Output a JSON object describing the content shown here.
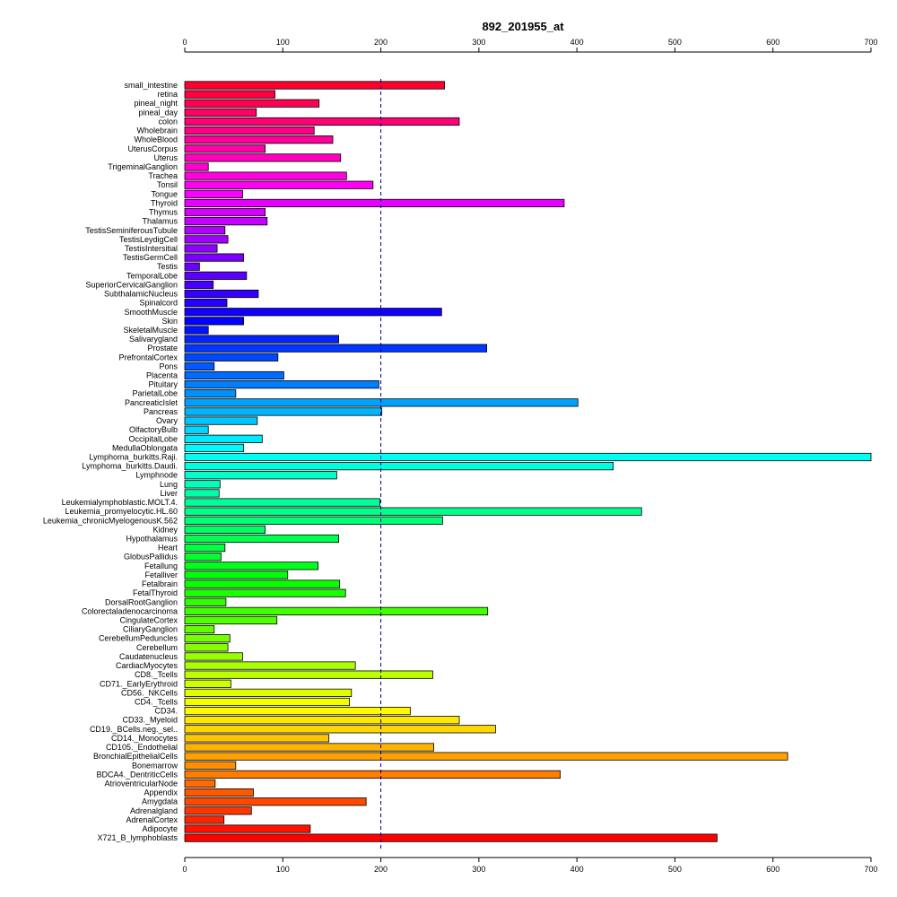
{
  "chart_data": {
    "type": "bar",
    "orientation": "horizontal",
    "title": "892_201955_at",
    "xlabel": "",
    "ylabel": "",
    "xlim": [
      0,
      700
    ],
    "x_ticks": [
      0,
      100,
      200,
      300,
      400,
      500,
      600,
      700
    ],
    "x_ticks_top_and_bottom": true,
    "reference_line": {
      "value": 200,
      "style": "dashed",
      "color": "#00008b"
    },
    "grid": false,
    "legend": "none",
    "categories": [
      "small_intestine",
      "retina",
      "pineal_night",
      "pineal_day",
      "colon",
      "Wholebrain",
      "WholeBlood",
      "UterusCorpus",
      "Uterus",
      "TrigeminalGanglion",
      "Trachea",
      "Tonsil",
      "Tongue",
      "Thyroid",
      "Thymus",
      "Thalamus",
      "TestisSeminiferousTubule",
      "TestisLeydigCell",
      "TestisIntersitial",
      "TestisGermCell",
      "Testis",
      "TemporalLobe",
      "SuperiorCervicalGanglion",
      "SubthalamicNucleus",
      "Spinalcord",
      "SmoothMuscle",
      "Skin",
      "SkeletalMuscle",
      "Salivarygland",
      "Prostate",
      "PrefrontalCortex",
      "Pons",
      "Placenta",
      "Pituitary",
      "ParietalLobe",
      "PancreaticIslet",
      "Pancreas",
      "Ovary",
      "OlfactoryBulb",
      "OccipitalLobe",
      "MedullaOblongata",
      "Lymphoma_burkitts.Raji.",
      "Lymphoma_burkitts.Daudi.",
      "Lymphnode",
      "Lung",
      "Liver",
      "Leukemialymphoblastic.MOLT.4.",
      "Leukemia_promyelocytic.HL.60",
      "Leukemia_chronicMyelogenousK.562",
      "Kidney",
      "Hypothalamus",
      "Heart",
      "GlobusPallidus",
      "Fetallung",
      "Fetalliver",
      "Fetalbrain",
      "FetalThyroid",
      "DorsalRootGanglion",
      "Colorectaladenocarcinoma",
      "CingulateCortex",
      "CiliaryGanglion",
      "CerebellumPeduncles",
      "Cerebellum",
      "Caudatenucleus",
      "CardiacMyocytes",
      "CD8._Tcells",
      "CD71._EarlyErythroid",
      "CD56._NKCells",
      "CD4._Tcells",
      "CD34.",
      "CD33._Myeloid",
      "CD19._BCells.neg._sel..",
      "CD14._Monocytes",
      "CD105._Endothelial",
      "BronchialEpithelialCells",
      "Bonemarrow",
      "BDCA4._DentriticCells",
      "AtrioventricularNode",
      "Appendix",
      "Amygdala",
      "Adrenalgland",
      "AdrenalCortex",
      "Adipocyte",
      "X721_B_lymphoblasts"
    ],
    "values": [
      265,
      92,
      137,
      73,
      280,
      132,
      151,
      82,
      159,
      24,
      165,
      192,
      59,
      387,
      82,
      84,
      41,
      44,
      33,
      60,
      15,
      63,
      29,
      75,
      43,
      262,
      60,
      24,
      157,
      308,
      95,
      30,
      101,
      198,
      52,
      401,
      201,
      74,
      24,
      79,
      60,
      700,
      437,
      155,
      36,
      35,
      199,
      466,
      263,
      82,
      157,
      41,
      37,
      136,
      105,
      158,
      164,
      42,
      309,
      94,
      30,
      46,
      44,
      59,
      174,
      253,
      47,
      170,
      168,
      230,
      280,
      317,
      147,
      254,
      615,
      52,
      383,
      31,
      70,
      185,
      68,
      40,
      128,
      543
    ]
  }
}
